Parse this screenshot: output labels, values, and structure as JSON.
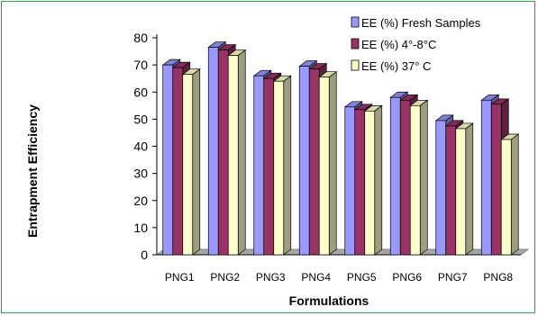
{
  "chart_data": {
    "type": "bar",
    "categories": [
      "PNG1",
      "PNG2",
      "PNG3",
      "PNG4",
      "PNG5",
      "PNG6",
      "PNG7",
      "PNG8"
    ],
    "series": [
      {
        "name": "EE (%) Fresh Samples",
        "values": [
          70,
          76.5,
          66,
          69.5,
          54.5,
          58,
          49.5,
          57
        ],
        "color": "#9999ff"
      },
      {
        "name": "EE (%) 4°-8°C",
        "values": [
          69,
          75.5,
          65,
          68.5,
          53.5,
          57,
          47.5,
          55.5
        ],
        "color": "#993366"
      },
      {
        "name": "EE (%) 37° C",
        "values": [
          66.5,
          73.5,
          64,
          65.5,
          53,
          55,
          46.5,
          42.5
        ],
        "color": "#ffffcc"
      }
    ],
    "title": "",
    "xlabel": "Formulations",
    "ylabel": "Entrapment Efficiency",
    "ylim": [
      0,
      80
    ],
    "yticks": [
      0,
      10,
      20,
      30,
      40,
      50,
      60,
      70,
      80
    ],
    "grid": false,
    "legend": "top-right",
    "style": "3d-clustered"
  }
}
